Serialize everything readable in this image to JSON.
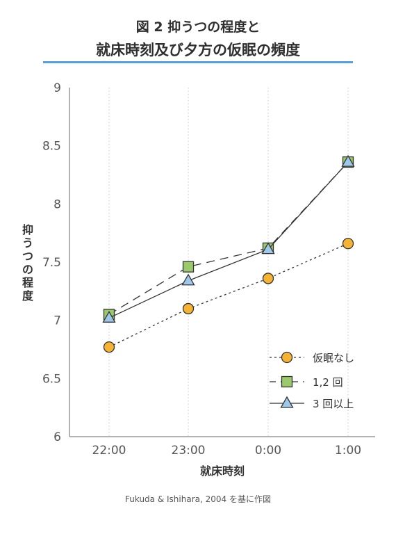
{
  "header": {
    "title_line1": "図 2 抑うつの程度と",
    "title_line2": "就床時刻及び夕方の仮眠の頻度"
  },
  "source": "Fukuda & Ishihara, 2004 を基に作図",
  "colors": {
    "title_rule": "#5a9fd4",
    "circle_fill": "#f5b335",
    "square_fill": "#9cc96b",
    "triangle_fill": "#9ec8ea",
    "line": "#333333"
  },
  "chart_data": {
    "type": "line",
    "title": "図 2 抑うつの程度と 就床時刻及び夕方の仮眠の頻度",
    "xlabel": "就床時刻",
    "ylabel": "抑うつの程度",
    "categories": [
      "22:00",
      "23:00",
      "0:00",
      "1:00"
    ],
    "ylim": [
      6,
      9
    ],
    "yticks": [
      "6",
      "6.5",
      "7",
      "7.5",
      "8",
      "8.5",
      "9"
    ],
    "grid": "vertical dotted",
    "legend_position": "bottom-right",
    "series": [
      {
        "name": "仮眠なし",
        "marker": "circle",
        "linestyle": "dotted",
        "values": [
          6.77,
          7.1,
          7.36,
          7.66
        ]
      },
      {
        "name": "1,2 回",
        "marker": "square",
        "linestyle": "dashed",
        "values": [
          7.05,
          7.46,
          7.62,
          8.36
        ]
      },
      {
        "name": "3 回以上",
        "marker": "triangle",
        "linestyle": "solid",
        "values": [
          7.02,
          7.34,
          7.61,
          8.36
        ]
      }
    ]
  }
}
